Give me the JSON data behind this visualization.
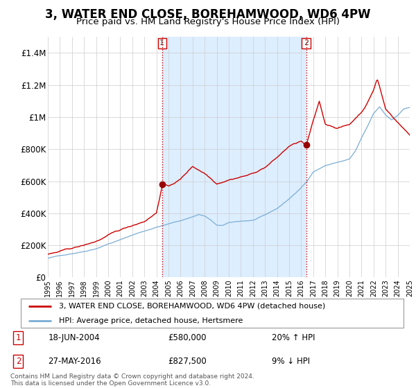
{
  "title": "3, WATER END CLOSE, BOREHAMWOOD, WD6 4PW",
  "subtitle": "Price paid vs. HM Land Registry's House Price Index (HPI)",
  "ylim": [
    0,
    1500000
  ],
  "yticks": [
    0,
    200000,
    400000,
    600000,
    800000,
    1000000,
    1200000,
    1400000
  ],
  "ytick_labels": [
    "£0",
    "£200K",
    "£400K",
    "£600K",
    "£800K",
    "£1M",
    "£1.2M",
    "£1.4M"
  ],
  "hpi_color": "#7aadd4",
  "price_color": "#cc0000",
  "shade_color": "#ddeeff",
  "marker1_date_x": 2004.47,
  "marker1_y": 580000,
  "marker2_date_x": 2016.41,
  "marker2_y": 827500,
  "marker1_date_str": "18-JUN-2004",
  "marker1_price_str": "£580,000",
  "marker1_hpi_str": "20% ↑ HPI",
  "marker2_date_str": "27-MAY-2016",
  "marker2_price_str": "£827,500",
  "marker2_hpi_str": "9% ↓ HPI",
  "legend_line1": "3, WATER END CLOSE, BOREHAMWOOD, WD6 4PW (detached house)",
  "legend_line2": "HPI: Average price, detached house, Hertsmere",
  "footer": "Contains HM Land Registry data © Crown copyright and database right 2024.\nThis data is licensed under the Open Government Licence v3.0.",
  "xmin": 1995,
  "xmax": 2025
}
